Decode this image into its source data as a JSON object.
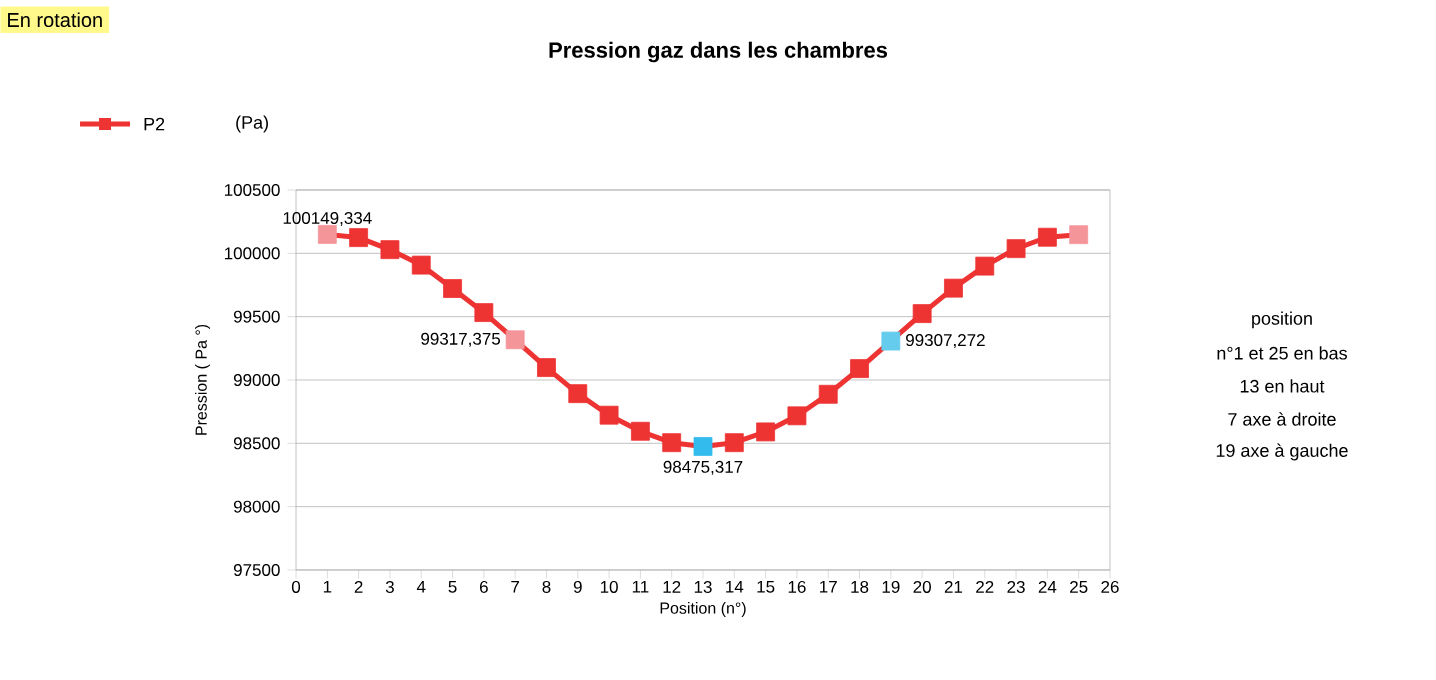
{
  "chart_data": {
    "type": "line",
    "title": "Pression gaz dans les chambres",
    "xlabel": "Position (n°)",
    "ylabel": "Pression ( Pa °)",
    "legend_title": "(Pa)",
    "legend": "top left",
    "grid": "y",
    "marker": "square",
    "line_style": "solid",
    "annotations": [
      "En rotation",
      "position",
      "n°1 et 25 en bas",
      "13        en haut",
      "7   axe à droite",
      "19  axe à gauche"
    ],
    "xlim": [
      0,
      26
    ],
    "xticks": [
      0,
      1,
      2,
      3,
      4,
      5,
      6,
      7,
      8,
      9,
      10,
      11,
      12,
      13,
      14,
      15,
      16,
      17,
      18,
      19,
      20,
      21,
      22,
      23,
      24,
      25,
      26
    ],
    "ylim": [
      97500,
      100500
    ],
    "yticks": [
      97500,
      98000,
      98500,
      99000,
      99500,
      100000,
      100500
    ],
    "series": [
      {
        "name": "P2",
        "color": "#ee3333",
        "x": [
          1,
          2,
          3,
          4,
          5,
          6,
          7,
          8,
          9,
          10,
          11,
          12,
          13,
          14,
          15,
          16,
          17,
          18,
          19,
          20,
          21,
          22,
          23,
          24,
          25
        ],
        "values": [
          100149.334,
          100124,
          100029,
          99907,
          99722,
          99532,
          99317.375,
          99098,
          98892,
          98722,
          98595,
          98505,
          98475.317,
          98505,
          98590,
          98717,
          98887,
          99090,
          99307.272,
          99524,
          99725,
          99899,
          100037,
          100127,
          100147
        ],
        "colors": [
          "#f4959a",
          "#ee3333",
          "#ee3333",
          "#ee3333",
          "#ee3333",
          "#ee3333",
          "#f4959a",
          "#ee3333",
          "#ee3333",
          "#ee3333",
          "#ee3333",
          "#ee3333",
          "#33bbee",
          "#ee3333",
          "#ee3333",
          "#ee3333",
          "#ee3333",
          "#ee3333",
          "#66ccee",
          "#ee3333",
          "#ee3333",
          "#ee3333",
          "#ee3333",
          "#ee3333",
          "#f4959a"
        ],
        "value_labels": [
          "100149,334",
          null,
          null,
          null,
          null,
          null,
          "99317,375",
          null,
          null,
          null,
          null,
          null,
          "98475,317",
          null,
          null,
          null,
          null,
          null,
          "99307,272",
          null,
          null,
          null,
          null,
          null,
          null
        ]
      }
    ]
  }
}
